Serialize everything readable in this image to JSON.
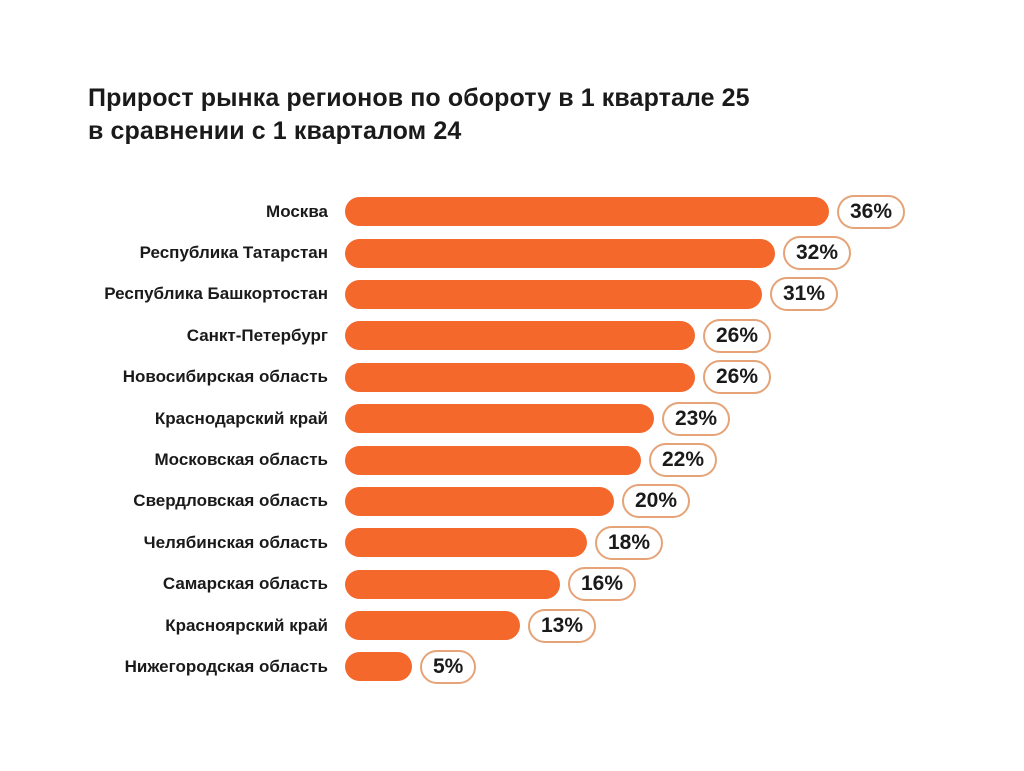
{
  "chart_data": {
    "type": "bar",
    "orientation": "horizontal",
    "title": "Прирост рынка регионов по обороту в 1 квартале 25\nв сравнении с 1 кварталом 24",
    "unit": "%",
    "xlim": [
      0,
      36
    ],
    "grid": false,
    "legend": "none",
    "categories": [
      "Москва",
      "Республика Татарстан",
      "Республика Башкортостан",
      "Санкт-Петербург",
      "Новосибирская область",
      "Краснодарский край",
      "Московская область",
      "Свердловская область",
      "Челябинская область",
      "Самарская область",
      "Красноярский край",
      "Нижегородская область"
    ],
    "values": [
      36,
      32,
      31,
      26,
      26,
      23,
      22,
      20,
      18,
      16,
      13,
      5
    ],
    "value_labels": [
      "36%",
      "32%",
      "31%",
      "26%",
      "26%",
      "23%",
      "22%",
      "20%",
      "18%",
      "16%",
      "13%",
      "5%"
    ],
    "colors": {
      "bar": "#F4682B",
      "badge_border": "#E5A377",
      "badge_background": "#FFFFFF",
      "text": "#1A1A1A",
      "background": "#FFFFFF"
    }
  }
}
